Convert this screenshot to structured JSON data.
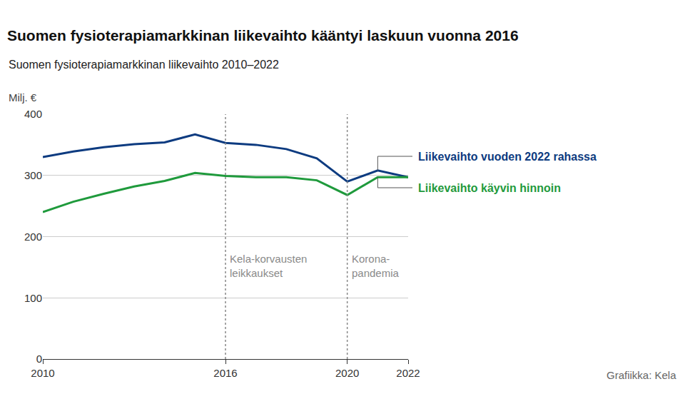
{
  "chart_data": {
    "type": "line",
    "title": "Suomen fysioterapiamarkkinan liikevaihto kääntyi laskuun vuonna 2016",
    "subtitle": "Suomen fysioterapiamarkkinan liikevaihto 2010–2022",
    "y_label": "Milj. €",
    "source": "Grafiikka: Kela",
    "x": [
      2010,
      2011,
      2012,
      2013,
      2014,
      2015,
      2016,
      2017,
      2018,
      2019,
      2020,
      2021,
      2022
    ],
    "series": [
      {
        "name": "Liikevaihto vuoden 2022 rahassa",
        "color": "#0d3b80",
        "values": [
          330,
          339,
          346,
          351,
          354,
          367,
          353,
          350,
          343,
          328,
          290,
          308,
          297
        ]
      },
      {
        "name": "Liikevaihto käyvin hinnoin",
        "color": "#1f9a3c",
        "values": [
          240,
          257,
          270,
          282,
          291,
          304,
          299,
          297,
          297,
          292,
          268,
          297,
          297
        ]
      }
    ],
    "annotations": [
      {
        "x": 2016,
        "lines": [
          "Kela-korvausten",
          "leikkaukset"
        ]
      },
      {
        "x": 2020,
        "lines": [
          "Korona-",
          "pandemia"
        ]
      }
    ],
    "xlim": [
      2010,
      2022
    ],
    "xticks": [
      2010,
      2016,
      2020,
      2022
    ],
    "ylim": [
      0,
      400
    ],
    "yticks": [
      0,
      100,
      200,
      300,
      400
    ],
    "grid": true
  }
}
